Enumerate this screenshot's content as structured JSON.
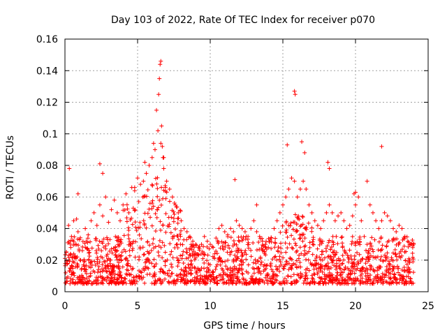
{
  "chart_data": {
    "type": "scatter",
    "title": "Day 103 of 2022, Rate Of TEC Index for receiver p070",
    "xlabel": "GPS time / hours",
    "ylabel": "ROTI / TECUs",
    "xlim": [
      0,
      25
    ],
    "ylim": [
      0,
      0.16
    ],
    "xticks": [
      "0",
      "5",
      "10",
      "15",
      "20",
      "25"
    ],
    "yticks": [
      "0",
      "0.02",
      "0.04",
      "0.06",
      "0.08",
      "0.1",
      "0.12",
      "0.14",
      "0.16"
    ],
    "grid": true,
    "marker": "+",
    "colors": {
      "series": "#ff0000",
      "grid": "#a0a0a0",
      "axes": "#000000"
    },
    "series": [
      {
        "name": "",
        "x": [
          0.05,
          0.1,
          0.15,
          0.2,
          0.25,
          0.3,
          0.35,
          0.4,
          0.45,
          0.5,
          0.55,
          0.6,
          0.7,
          0.8,
          0.9,
          1.0,
          1.2,
          1.4,
          1.6,
          1.8,
          2.0,
          2.2,
          2.4,
          2.6,
          2.8,
          3.0,
          3.2,
          3.4,
          3.6,
          3.8,
          4.0,
          4.2,
          4.4,
          4.6,
          4.8,
          5.0,
          5.2,
          5.4,
          5.6,
          5.8,
          6.0,
          6.2,
          6.4,
          6.6,
          6.8,
          7.0,
          7.2,
          7.4,
          7.6,
          7.8,
          8.0,
          8.2,
          8.4,
          8.6,
          8.8,
          9.0,
          9.2,
          9.4,
          9.6,
          9.8,
          10.0,
          10.2,
          10.4,
          10.6,
          10.8,
          11.0,
          11.2,
          11.4,
          11.6,
          11.8,
          12.0,
          12.2,
          12.4,
          12.6,
          12.8,
          13.0,
          13.2,
          13.4,
          13.6,
          13.8,
          14.0,
          14.2,
          14.4,
          14.6,
          14.8,
          15.0,
          15.2,
          15.4,
          15.6,
          15.8,
          16.0,
          16.2,
          16.4,
          16.6,
          16.8,
          17.0,
          17.2,
          17.4,
          17.6,
          17.8,
          18.0,
          18.2,
          18.4,
          18.6,
          18.8,
          19.0,
          19.2,
          19.4,
          19.6,
          19.8,
          20.0,
          20.2,
          20.4,
          20.6,
          20.8,
          21.0,
          21.2,
          21.4,
          21.6,
          21.8,
          22.0,
          22.2,
          22.4,
          22.6,
          22.8,
          23.0,
          23.2,
          23.4,
          23.6,
          23.8,
          24.0,
          0.3,
          0.9,
          2.4,
          2.6,
          4.8,
          5.5,
          6.1,
          6.3,
          6.45,
          6.5,
          6.55,
          6.6,
          6.65,
          6.7,
          6.75,
          6.8,
          15.3,
          15.8,
          15.85,
          16.3,
          16.5,
          11.7,
          18.1,
          18.2,
          21.8,
          20.8,
          20.0,
          19.9,
          13.2
        ],
        "y": [
          0.012,
          0.025,
          0.018,
          0.031,
          0.042,
          0.02,
          0.015,
          0.028,
          0.035,
          0.022,
          0.019,
          0.045,
          0.03,
          0.046,
          0.038,
          0.033,
          0.026,
          0.04,
          0.036,
          0.045,
          0.05,
          0.042,
          0.055,
          0.048,
          0.06,
          0.044,
          0.052,
          0.058,
          0.05,
          0.045,
          0.055,
          0.062,
          0.05,
          0.066,
          0.064,
          0.072,
          0.068,
          0.07,
          0.075,
          0.08,
          0.085,
          0.09,
          0.102,
          0.094,
          0.085,
          0.07,
          0.065,
          0.06,
          0.055,
          0.05,
          0.045,
          0.04,
          0.038,
          0.035,
          0.032,
          0.03,
          0.028,
          0.03,
          0.035,
          0.032,
          0.03,
          0.028,
          0.034,
          0.04,
          0.042,
          0.038,
          0.036,
          0.04,
          0.038,
          0.045,
          0.042,
          0.04,
          0.038,
          0.035,
          0.04,
          0.045,
          0.038,
          0.035,
          0.032,
          0.03,
          0.028,
          0.034,
          0.04,
          0.045,
          0.05,
          0.055,
          0.06,
          0.065,
          0.072,
          0.07,
          0.06,
          0.065,
          0.07,
          0.065,
          0.055,
          0.05,
          0.045,
          0.042,
          0.04,
          0.045,
          0.05,
          0.055,
          0.05,
          0.045,
          0.048,
          0.05,
          0.045,
          0.04,
          0.042,
          0.048,
          0.055,
          0.06,
          0.045,
          0.035,
          0.03,
          0.055,
          0.05,
          0.045,
          0.04,
          0.045,
          0.05,
          0.048,
          0.045,
          0.04,
          0.038,
          0.042,
          0.04,
          0.035,
          0.032,
          0.03,
          0.03,
          0.078,
          0.062,
          0.081,
          0.075,
          0.066,
          0.082,
          0.094,
          0.115,
          0.125,
          0.135,
          0.144,
          0.146,
          0.105,
          0.092,
          0.085,
          0.078,
          0.093,
          0.127,
          0.125,
          0.095,
          0.088,
          0.071,
          0.082,
          0.078,
          0.092,
          0.07,
          0.063,
          0.062,
          0.055
        ]
      }
    ]
  }
}
